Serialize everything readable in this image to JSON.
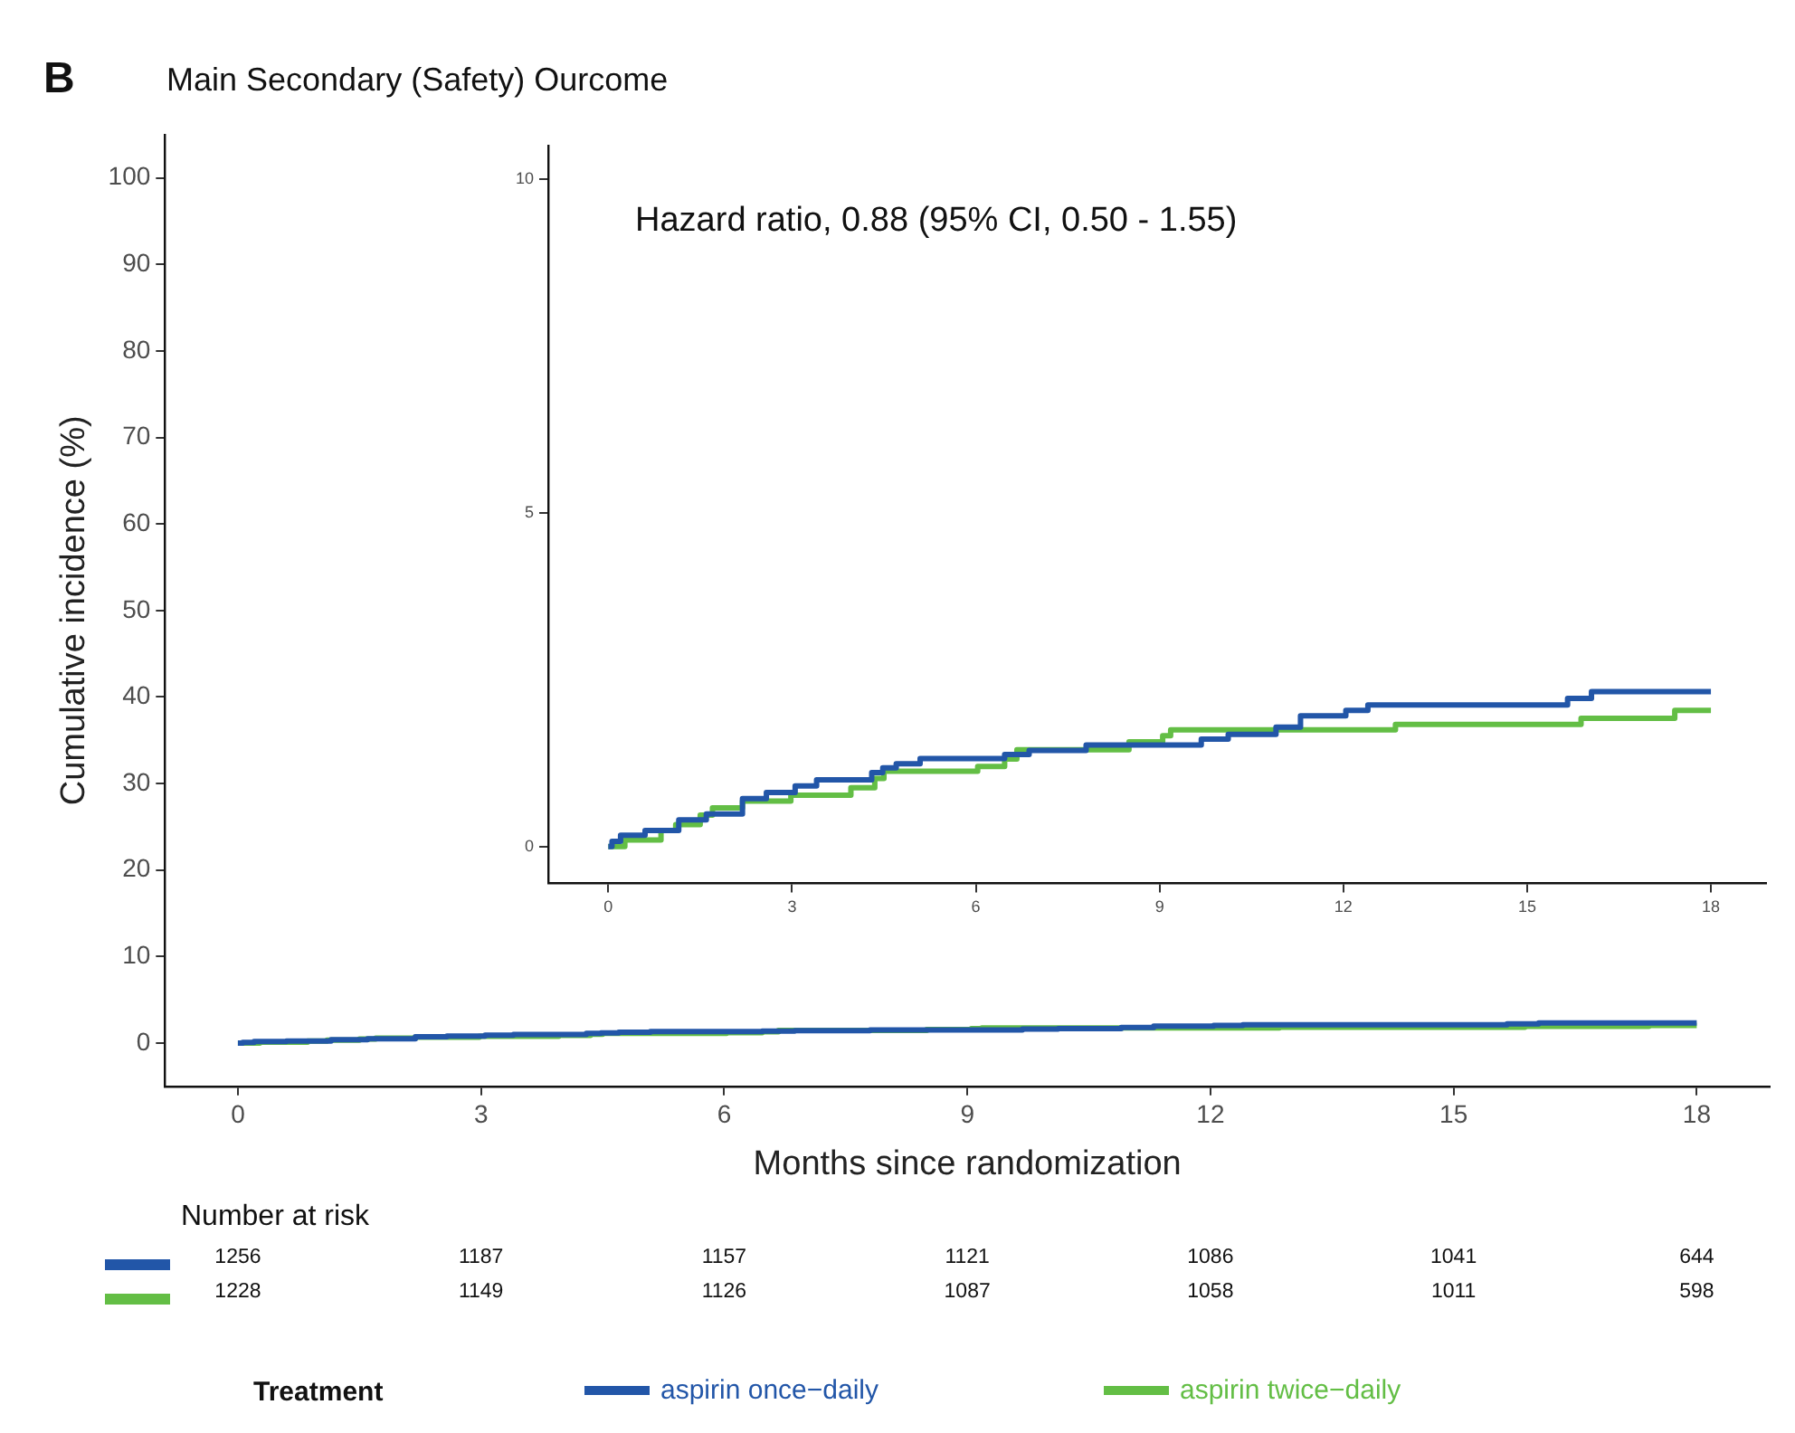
{
  "chart_data": [
    {
      "type": "step",
      "title": "Main Secondary (Safety) Ourcome",
      "xlabel": "Months since randomization",
      "ylabel": "Cumulative incidence (%)",
      "legend_title": "Treatment",
      "legend": "bottom",
      "grid": false,
      "annotations": [
        "B",
        "Number at risk",
        "1256",
        "1187",
        "1157",
        "1121",
        "1086",
        "1041",
        "644",
        "1228",
        "1149",
        "1126",
        "1087",
        "1058",
        "1011",
        "598"
      ],
      "xlim": [
        -0.9,
        18.9
      ],
      "xticks": [
        0,
        3,
        6,
        9,
        12,
        15,
        18
      ],
      "ylim": [
        -5,
        105
      ],
      "yticks": [
        0,
        10,
        20,
        30,
        40,
        50,
        60,
        70,
        80,
        90,
        100
      ],
      "series": [
        {
          "name": "aspirin once−daily",
          "color": "#2256a8",
          "x": [
            0,
            0.06,
            0.2,
            0.6,
            1.15,
            1.6,
            2.19,
            2.58,
            3.05,
            3.4,
            4.3,
            4.48,
            4.7,
            5.09,
            6.47,
            6.87,
            7.8,
            9.68,
            10.12,
            10.9,
            11.3,
            12.04,
            12.4,
            15.66,
            16.05,
            18
          ],
          "values": [
            0,
            0.08,
            0.17,
            0.24,
            0.4,
            0.49,
            0.72,
            0.81,
            0.91,
            1.0,
            1.11,
            1.18,
            1.24,
            1.32,
            1.38,
            1.44,
            1.52,
            1.61,
            1.68,
            1.79,
            1.96,
            2.04,
            2.12,
            2.22,
            2.32,
            2.32
          ]
        },
        {
          "name": "aspirin twice−daily",
          "color": "#63be45",
          "x": [
            0,
            0.27,
            0.86,
            1.1,
            1.5,
            1.7,
            2.19,
            2.98,
            3.96,
            4.35,
            4.5,
            6.03,
            6.47,
            6.67,
            8.5,
            9.05,
            9.18,
            12.85,
            15.88,
            17.41,
            18
          ],
          "values": [
            0,
            0.1,
            0.24,
            0.33,
            0.47,
            0.58,
            0.68,
            0.77,
            0.88,
            1.02,
            1.13,
            1.2,
            1.31,
            1.45,
            1.57,
            1.66,
            1.75,
            1.83,
            1.92,
            2.04,
            2.04
          ]
        }
      ]
    },
    {
      "type": "step",
      "grid": false,
      "annotations": [
        "Hazard ratio, 0.88 (95% CI, 0.50 - 1.55)"
      ],
      "xlim": [
        -0.98,
        18.9
      ],
      "xticks": [
        0,
        3,
        6,
        9,
        12,
        15,
        18
      ],
      "ylim": [
        -0.55,
        10.5
      ],
      "yticks": [
        0,
        5,
        10
      ],
      "series": [
        {
          "color": "#2256a8",
          "x": [
            0,
            0.06,
            0.2,
            0.6,
            1.15,
            1.6,
            2.19,
            2.58,
            3.05,
            3.4,
            4.3,
            4.48,
            4.7,
            5.09,
            6.47,
            6.87,
            7.8,
            9.68,
            10.12,
            10.9,
            11.3,
            12.04,
            12.4,
            15.66,
            16.05,
            18
          ],
          "values": [
            0,
            0.08,
            0.17,
            0.24,
            0.4,
            0.49,
            0.72,
            0.81,
            0.91,
            1.0,
            1.11,
            1.18,
            1.24,
            1.32,
            1.38,
            1.44,
            1.52,
            1.61,
            1.68,
            1.79,
            1.96,
            2.04,
            2.12,
            2.22,
            2.32,
            2.32
          ]
        },
        {
          "color": "#63be45",
          "x": [
            0,
            0.27,
            0.86,
            1.1,
            1.5,
            1.7,
            2.19,
            2.98,
            3.96,
            4.35,
            4.5,
            6.03,
            6.47,
            6.67,
            8.5,
            9.05,
            9.18,
            12.85,
            15.88,
            17.41,
            18
          ],
          "values": [
            0,
            0.1,
            0.24,
            0.33,
            0.47,
            0.58,
            0.68,
            0.77,
            0.88,
            1.02,
            1.13,
            1.2,
            1.31,
            1.45,
            1.57,
            1.66,
            1.75,
            1.83,
            1.92,
            2.04,
            2.04
          ]
        }
      ]
    }
  ]
}
